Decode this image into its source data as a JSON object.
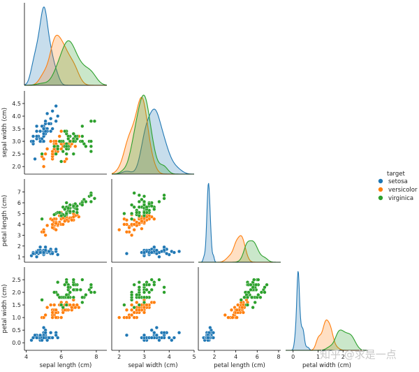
{
  "colors": {
    "setosa": "#1f77b4",
    "versicolor": "#ff7f0e",
    "virginica": "#2ca02c"
  },
  "watermark": "知乎 @求是一点",
  "chart_data": {
    "type": "scatter",
    "subtype": "pairplot-lower-corner-with-kde-diagonal",
    "variables": [
      "sepal length (cm)",
      "sepal width (cm)",
      "petal length (cm)",
      "petal width (cm)"
    ],
    "legend": {
      "title": "target",
      "placement": "right",
      "entries": [
        "setosa",
        "versicolor",
        "virginica"
      ]
    },
    "axes": {
      "sepal length (cm)": {
        "range": [
          3.9,
          8.6
        ],
        "ticks": [
          4,
          6,
          8
        ]
      },
      "sepal width (cm)": {
        "range": [
          1.7,
          5.0
        ],
        "ticks": [
          2,
          3,
          4,
          5
        ],
        "row_ticks": [
          2.0,
          2.5,
          3.0,
          3.5,
          4.0,
          4.5
        ]
      },
      "petal length (cm)": {
        "range": [
          0.5,
          8.2
        ],
        "ticks": [
          2,
          4,
          6,
          8
        ],
        "row_ticks": [
          1,
          2,
          3,
          4,
          5,
          6,
          7
        ]
      },
      "petal width (cm)": {
        "range": [
          -0.3,
          3.0
        ],
        "ticks": [
          0,
          1,
          2
        ],
        "row_ticks": [
          0.0,
          0.5,
          1.0,
          1.5,
          2.0,
          2.5
        ]
      }
    },
    "series": [
      {
        "name": "setosa",
        "sepal_length": [
          5.1,
          4.9,
          4.7,
          4.6,
          5.0,
          5.4,
          4.6,
          5.0,
          4.4,
          4.9,
          5.4,
          4.8,
          4.8,
          4.3,
          5.8,
          5.7,
          5.4,
          5.1,
          5.7,
          5.1,
          5.4,
          5.1,
          4.6,
          5.1,
          4.8,
          5.0,
          5.0,
          5.2,
          5.2,
          4.7,
          4.8,
          5.4,
          5.2,
          5.5,
          4.9,
          5.0,
          5.5,
          4.9,
          4.4,
          5.1,
          5.0,
          4.5,
          4.4,
          5.0,
          5.1,
          4.8,
          5.1,
          4.6,
          5.3,
          5.0
        ],
        "sepal_width": [
          3.5,
          3.0,
          3.2,
          3.1,
          3.6,
          3.9,
          3.4,
          3.4,
          2.9,
          3.1,
          3.7,
          3.4,
          3.0,
          3.0,
          4.0,
          4.4,
          3.9,
          3.5,
          3.8,
          3.8,
          3.4,
          3.7,
          3.6,
          3.3,
          3.4,
          3.0,
          3.4,
          3.5,
          3.4,
          3.2,
          3.1,
          3.4,
          4.1,
          4.2,
          3.1,
          3.2,
          3.5,
          3.6,
          3.0,
          3.4,
          3.5,
          2.3,
          3.2,
          3.5,
          3.8,
          3.0,
          3.8,
          3.2,
          3.7,
          3.3
        ],
        "petal_length": [
          1.4,
          1.4,
          1.3,
          1.5,
          1.4,
          1.7,
          1.4,
          1.5,
          1.4,
          1.5,
          1.5,
          1.6,
          1.4,
          1.1,
          1.2,
          1.5,
          1.3,
          1.4,
          1.7,
          1.5,
          1.7,
          1.5,
          1.0,
          1.7,
          1.9,
          1.6,
          1.6,
          1.5,
          1.4,
          1.6,
          1.6,
          1.5,
          1.5,
          1.4,
          1.5,
          1.2,
          1.3,
          1.4,
          1.3,
          1.5,
          1.3,
          1.3,
          1.3,
          1.6,
          1.9,
          1.4,
          1.6,
          1.4,
          1.5,
          1.4
        ],
        "petal_width": [
          0.2,
          0.2,
          0.2,
          0.2,
          0.2,
          0.4,
          0.3,
          0.2,
          0.2,
          0.1,
          0.2,
          0.2,
          0.1,
          0.1,
          0.2,
          0.4,
          0.4,
          0.3,
          0.3,
          0.3,
          0.2,
          0.4,
          0.2,
          0.5,
          0.2,
          0.2,
          0.4,
          0.2,
          0.2,
          0.2,
          0.2,
          0.4,
          0.1,
          0.2,
          0.2,
          0.2,
          0.2,
          0.1,
          0.2,
          0.2,
          0.3,
          0.3,
          0.2,
          0.6,
          0.4,
          0.3,
          0.2,
          0.2,
          0.2,
          0.2
        ]
      },
      {
        "name": "versicolor",
        "sepal_length": [
          7.0,
          6.4,
          6.9,
          5.5,
          6.5,
          5.7,
          6.3,
          4.9,
          6.6,
          5.2,
          5.0,
          5.9,
          6.0,
          6.1,
          5.6,
          6.7,
          5.6,
          5.8,
          6.2,
          5.6,
          5.9,
          6.1,
          6.3,
          6.1,
          6.4,
          6.6,
          6.8,
          6.7,
          6.0,
          5.7,
          5.5,
          5.5,
          5.8,
          6.0,
          5.4,
          6.0,
          6.7,
          6.3,
          5.6,
          5.5,
          5.5,
          6.1,
          5.8,
          5.0,
          5.6,
          5.7,
          5.7,
          6.2,
          5.1,
          5.7
        ],
        "sepal_width": [
          3.2,
          3.2,
          3.1,
          2.3,
          2.8,
          2.8,
          3.3,
          2.4,
          2.9,
          2.7,
          2.0,
          3.0,
          2.2,
          2.9,
          2.9,
          3.1,
          3.0,
          2.7,
          2.2,
          2.5,
          3.2,
          2.8,
          2.5,
          2.8,
          2.9,
          3.0,
          2.8,
          3.0,
          2.9,
          2.6,
          2.4,
          2.4,
          2.7,
          2.7,
          3.0,
          3.4,
          3.1,
          2.3,
          3.0,
          2.5,
          2.6,
          3.0,
          2.6,
          2.3,
          2.7,
          3.0,
          2.9,
          2.9,
          2.5,
          2.8
        ],
        "petal_length": [
          4.7,
          4.5,
          4.9,
          4.0,
          4.6,
          4.5,
          4.7,
          3.3,
          4.6,
          3.9,
          3.5,
          4.2,
          4.0,
          4.7,
          3.6,
          4.4,
          4.5,
          4.1,
          4.5,
          3.9,
          4.8,
          4.0,
          4.9,
          4.7,
          4.3,
          4.4,
          4.8,
          5.0,
          4.5,
          3.5,
          3.8,
          3.7,
          3.9,
          5.1,
          4.5,
          4.5,
          4.7,
          4.4,
          4.1,
          4.0,
          4.4,
          4.6,
          4.0,
          3.3,
          4.2,
          4.2,
          4.2,
          4.3,
          3.0,
          4.1
        ],
        "petal_width": [
          1.4,
          1.5,
          1.5,
          1.3,
          1.5,
          1.3,
          1.6,
          1.0,
          1.3,
          1.4,
          1.0,
          1.5,
          1.0,
          1.4,
          1.3,
          1.4,
          1.5,
          1.0,
          1.5,
          1.1,
          1.8,
          1.3,
          1.5,
          1.2,
          1.3,
          1.4,
          1.4,
          1.7,
          1.5,
          1.0,
          1.1,
          1.0,
          1.2,
          1.6,
          1.5,
          1.6,
          1.5,
          1.3,
          1.3,
          1.3,
          1.2,
          1.4,
          1.2,
          1.0,
          1.3,
          1.2,
          1.3,
          1.3,
          1.1,
          1.3
        ]
      },
      {
        "name": "virginica",
        "sepal_length": [
          6.3,
          5.8,
          7.1,
          6.3,
          6.5,
          7.6,
          4.9,
          7.3,
          6.7,
          7.2,
          6.5,
          6.4,
          6.8,
          5.7,
          5.8,
          6.4,
          6.5,
          7.7,
          7.7,
          6.0,
          6.9,
          5.6,
          7.7,
          6.3,
          6.7,
          7.2,
          6.2,
          6.1,
          6.4,
          7.2,
          7.4,
          7.9,
          6.4,
          6.3,
          6.1,
          7.7,
          6.3,
          6.4,
          6.0,
          6.9,
          6.7,
          6.9,
          5.8,
          6.8,
          6.7,
          6.7,
          6.3,
          6.5,
          6.2,
          5.9
        ],
        "sepal_width": [
          3.3,
          2.7,
          3.0,
          2.9,
          3.0,
          3.0,
          2.5,
          2.9,
          2.5,
          3.6,
          3.2,
          2.7,
          3.0,
          2.5,
          2.8,
          3.2,
          3.0,
          3.8,
          2.6,
          2.2,
          3.2,
          2.8,
          2.8,
          2.7,
          3.3,
          3.2,
          2.8,
          3.0,
          2.8,
          3.0,
          2.8,
          3.8,
          2.8,
          2.8,
          2.6,
          3.0,
          3.4,
          3.1,
          3.0,
          3.1,
          3.1,
          3.1,
          2.7,
          3.2,
          3.3,
          3.0,
          2.5,
          3.0,
          3.4,
          3.0
        ],
        "petal_length": [
          6.0,
          5.1,
          5.9,
          5.6,
          5.8,
          6.6,
          4.5,
          6.3,
          5.8,
          6.1,
          5.1,
          5.3,
          5.5,
          5.0,
          5.1,
          5.3,
          5.5,
          6.7,
          6.9,
          5.0,
          5.7,
          4.9,
          6.7,
          4.9,
          5.7,
          6.0,
          4.8,
          4.9,
          5.6,
          5.8,
          6.1,
          6.4,
          5.6,
          5.1,
          5.6,
          6.1,
          5.6,
          5.5,
          4.8,
          5.4,
          5.6,
          5.1,
          5.1,
          5.9,
          5.7,
          5.2,
          5.0,
          5.2,
          5.4,
          5.1
        ],
        "petal_width": [
          2.5,
          1.9,
          2.1,
          1.8,
          2.2,
          2.1,
          1.7,
          1.8,
          1.8,
          2.5,
          2.0,
          1.9,
          2.1,
          2.0,
          2.4,
          2.3,
          1.8,
          2.2,
          2.3,
          1.5,
          2.3,
          2.0,
          2.0,
          1.8,
          2.1,
          1.8,
          1.8,
          1.8,
          2.1,
          1.6,
          1.9,
          2.0,
          2.2,
          1.5,
          1.4,
          2.3,
          2.4,
          1.8,
          1.8,
          2.1,
          2.4,
          2.3,
          1.9,
          2.3,
          2.5,
          2.3,
          1.9,
          2.0,
          2.3,
          1.8
        ]
      }
    ]
  }
}
